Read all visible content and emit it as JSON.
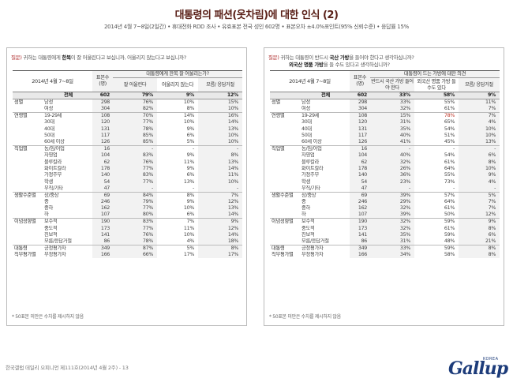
{
  "title": "대통령의 패션(옷차림)에 대한 인식 (2)",
  "subtitle": "2014년 4월 7~8일(2일간) • 휴대전화 RDD 조사 • 유효표본 전국 성인 602명 • 표본오차 ±4.0%포인트(95% 신뢰수준) • 응답률 15%",
  "left_panel": {
    "question_label": "질문)",
    "question_pre": "귀하는 대통령에게",
    "question_em": "한복",
    "question_post": "이 잘 어울린다고 보십니까, 어울리지 않는다고 보십니까?",
    "date": "2014년 4월 7~8일",
    "n_header": "표본수 (명)",
    "bunch_header": "대통령에게 한복 잘 어울리는가?",
    "col1": "잘 어울린다",
    "col2": "어울리지 않는다",
    "col3": "모름/ 응답거절",
    "rows": [
      {
        "group": "",
        "sub": "전체",
        "n": "602",
        "v": [
          "79%",
          "9%",
          "12%"
        ],
        "total": true
      },
      {
        "group": "성별",
        "sub": "남성",
        "n": "298",
        "v": [
          "76%",
          "10%",
          "15%"
        ],
        "start": true
      },
      {
        "group": "",
        "sub": "여성",
        "n": "304",
        "v": [
          "82%",
          "8%",
          "10%"
        ]
      },
      {
        "group": "연령별",
        "sub": "19-29세",
        "n": "108",
        "v": [
          "70%",
          "14%",
          "16%"
        ],
        "start": true
      },
      {
        "group": "",
        "sub": "30대",
        "n": "120",
        "v": [
          "77%",
          "10%",
          "14%"
        ]
      },
      {
        "group": "",
        "sub": "40대",
        "n": "131",
        "v": [
          "78%",
          "9%",
          "13%"
        ]
      },
      {
        "group": "",
        "sub": "50대",
        "n": "117",
        "v": [
          "85%",
          "6%",
          "10%"
        ]
      },
      {
        "group": "",
        "sub": "60세 이상",
        "n": "126",
        "v": [
          "85%",
          "5%",
          "10%"
        ]
      },
      {
        "group": "직업별",
        "sub": "농/임/어업",
        "n": "16",
        "v": [
          "-",
          "-",
          "-"
        ],
        "start": true
      },
      {
        "group": "",
        "sub": "자영업",
        "n": "104",
        "v": [
          "83%",
          "9%",
          "8%"
        ]
      },
      {
        "group": "",
        "sub": "블루칼라",
        "n": "62",
        "v": [
          "76%",
          "11%",
          "13%"
        ]
      },
      {
        "group": "",
        "sub": "화이트칼라",
        "n": "178",
        "v": [
          "77%",
          "9%",
          "14%"
        ]
      },
      {
        "group": "",
        "sub": "가정주부",
        "n": "140",
        "v": [
          "83%",
          "6%",
          "11%"
        ]
      },
      {
        "group": "",
        "sub": "학생",
        "n": "54",
        "v": [
          "77%",
          "13%",
          "10%"
        ]
      },
      {
        "group": "",
        "sub": "무직/기타",
        "n": "47",
        "v": [
          "-",
          "-",
          "-"
        ]
      },
      {
        "group": "생활수준별",
        "sub": "상/중상",
        "n": "69",
        "v": [
          "84%",
          "8%",
          "7%"
        ],
        "start": true
      },
      {
        "group": "",
        "sub": "중",
        "n": "246",
        "v": [
          "79%",
          "9%",
          "12%"
        ]
      },
      {
        "group": "",
        "sub": "중하",
        "n": "162",
        "v": [
          "77%",
          "10%",
          "13%"
        ]
      },
      {
        "group": "",
        "sub": "하",
        "n": "107",
        "v": [
          "80%",
          "6%",
          "14%"
        ]
      },
      {
        "group": "이념성향별",
        "sub": "보수적",
        "n": "190",
        "v": [
          "83%",
          "7%",
          "9%"
        ],
        "start": true
      },
      {
        "group": "",
        "sub": "중도적",
        "n": "173",
        "v": [
          "77%",
          "11%",
          "12%"
        ]
      },
      {
        "group": "",
        "sub": "진보적",
        "n": "141",
        "v": [
          "76%",
          "10%",
          "14%"
        ]
      },
      {
        "group": "",
        "sub": "모름/응답거절",
        "n": "86",
        "v": [
          "78%",
          "4%",
          "18%"
        ]
      },
      {
        "group": "대통령",
        "sub": "긍정평가자",
        "n": "349",
        "v": [
          "87%",
          "5%",
          "8%"
        ],
        "start": true
      },
      {
        "group": "직무평가별",
        "sub": "부정평가자",
        "n": "166",
        "v": [
          "66%",
          "17%",
          "17%"
        ]
      }
    ],
    "note": "* 50표본 미만은 수치를 제시하지 않음"
  },
  "right_panel": {
    "question_label": "질문)",
    "question_pre": "귀하는 대통령이 반드시",
    "question_em": "국산 가방",
    "question_post": "을 들어야 한다고 생각하십니까?",
    "question_em2": "외국산 명품 가방",
    "question_post2": "을 들 수도 있다고 생각하십니까?",
    "date": "2014년 4월 7~8일",
    "n_header": "표본수 (명)",
    "bunch_header": "대통령이 드는 가방에 대한 의견",
    "col1": "반드시 국산 가방 들어야 한다",
    "col2": "외국산 명품 가방 들 수도 있다",
    "col3": "모름/ 응답거절",
    "rows": [
      {
        "group": "",
        "sub": "전체",
        "n": "602",
        "v": [
          "33%",
          "58%",
          "9%"
        ],
        "total": true
      },
      {
        "group": "성별",
        "sub": "남성",
        "n": "298",
        "v": [
          "33%",
          "55%",
          "11%"
        ],
        "start": true
      },
      {
        "group": "",
        "sub": "여성",
        "n": "304",
        "v": [
          "32%",
          "61%",
          "7%"
        ]
      },
      {
        "group": "연령별",
        "sub": "19-29세",
        "n": "108",
        "v": [
          "15%",
          "78%",
          "7%"
        ],
        "start": true,
        "hl": 1
      },
      {
        "group": "",
        "sub": "30대",
        "n": "120",
        "v": [
          "31%",
          "65%",
          "4%"
        ]
      },
      {
        "group": "",
        "sub": "40대",
        "n": "131",
        "v": [
          "35%",
          "54%",
          "10%"
        ]
      },
      {
        "group": "",
        "sub": "50대",
        "n": "117",
        "v": [
          "40%",
          "51%",
          "10%"
        ]
      },
      {
        "group": "",
        "sub": "60세 이상",
        "n": "126",
        "v": [
          "41%",
          "45%",
          "13%"
        ]
      },
      {
        "group": "직업별",
        "sub": "농/임/어업",
        "n": "16",
        "v": [
          "-",
          "-",
          "-"
        ],
        "start": true
      },
      {
        "group": "",
        "sub": "자영업",
        "n": "104",
        "v": [
          "40%",
          "54%",
          "6%"
        ]
      },
      {
        "group": "",
        "sub": "블루칼라",
        "n": "62",
        "v": [
          "32%",
          "61%",
          "8%"
        ]
      },
      {
        "group": "",
        "sub": "화이트칼라",
        "n": "178",
        "v": [
          "26%",
          "64%",
          "10%"
        ]
      },
      {
        "group": "",
        "sub": "가정주부",
        "n": "140",
        "v": [
          "36%",
          "55%",
          "9%"
        ]
      },
      {
        "group": "",
        "sub": "학생",
        "n": "54",
        "v": [
          "23%",
          "73%",
          "4%"
        ]
      },
      {
        "group": "",
        "sub": "무직/기타",
        "n": "47",
        "v": [
          "-",
          "-",
          "-"
        ]
      },
      {
        "group": "생활수준별",
        "sub": "상/중상",
        "n": "69",
        "v": [
          "39%",
          "57%",
          "5%"
        ],
        "start": true
      },
      {
        "group": "",
        "sub": "중",
        "n": "246",
        "v": [
          "29%",
          "64%",
          "7%"
        ]
      },
      {
        "group": "",
        "sub": "중하",
        "n": "162",
        "v": [
          "32%",
          "61%",
          "7%"
        ]
      },
      {
        "group": "",
        "sub": "하",
        "n": "107",
        "v": [
          "39%",
          "50%",
          "12%"
        ]
      },
      {
        "group": "이념성향별",
        "sub": "보수적",
        "n": "190",
        "v": [
          "32%",
          "59%",
          "9%"
        ],
        "start": true
      },
      {
        "group": "",
        "sub": "중도적",
        "n": "173",
        "v": [
          "32%",
          "61%",
          "8%"
        ]
      },
      {
        "group": "",
        "sub": "진보적",
        "n": "141",
        "v": [
          "35%",
          "59%",
          "6%"
        ]
      },
      {
        "group": "",
        "sub": "모름/응답거절",
        "n": "86",
        "v": [
          "31%",
          "48%",
          "21%"
        ]
      },
      {
        "group": "대통령",
        "sub": "긍정평가자",
        "n": "349",
        "v": [
          "33%",
          "59%",
          "8%"
        ],
        "start": true
      },
      {
        "group": "직무평가별",
        "sub": "부정평가자",
        "n": "166",
        "v": [
          "34%",
          "58%",
          "8%"
        ]
      }
    ],
    "note": "* 50표본 미만은 수치를 제시하지 않음"
  },
  "footer": "한국갤럽 데일리 오피니언 제111호(2014년 4월 2주) - 13",
  "logo": {
    "text": "Gallup",
    "korea": "KOREA",
    "color": "#1d3c7a"
  }
}
